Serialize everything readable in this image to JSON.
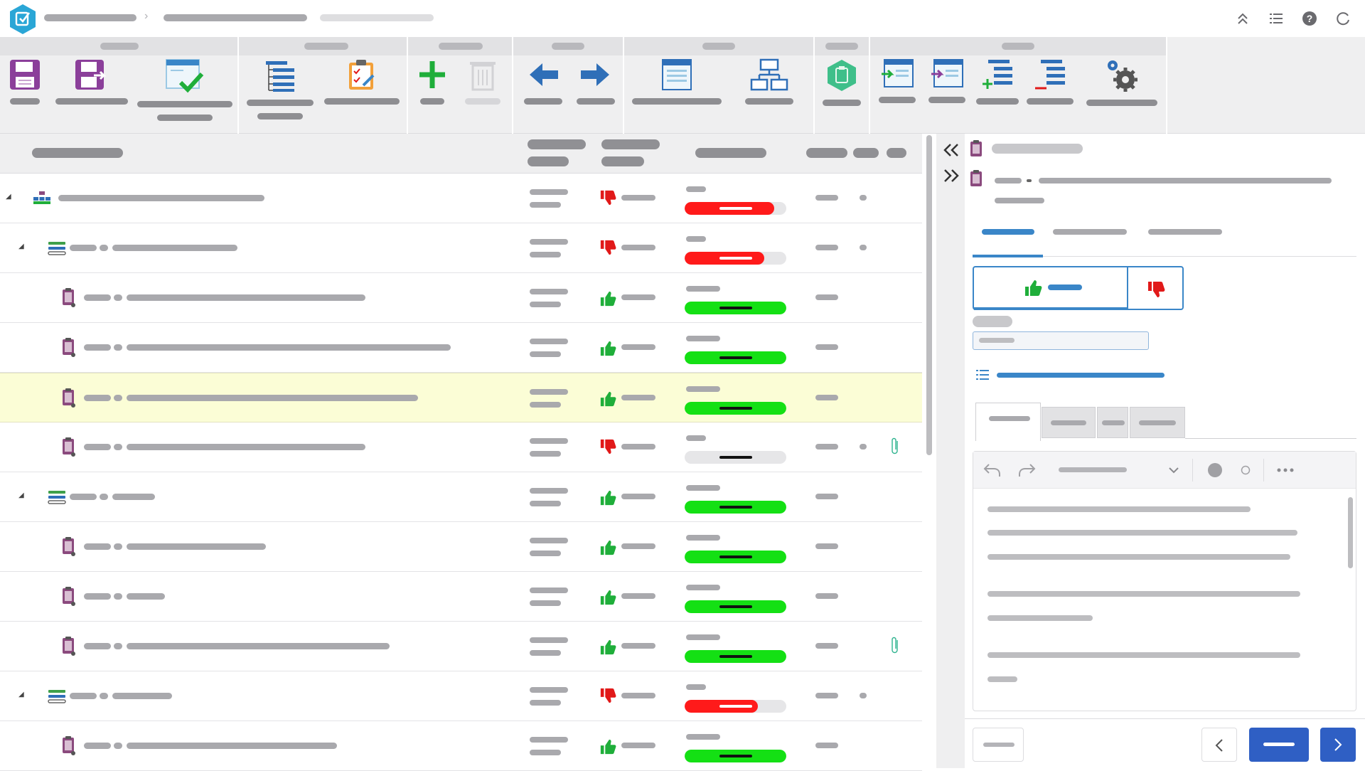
{
  "app": {
    "logo": "checklist-logo-icon",
    "breadcrumb": [
      "",
      "",
      ""
    ]
  },
  "topbar_icons": [
    "collapse-up-icon",
    "list-icon",
    "help-icon",
    "refresh-icon"
  ],
  "ribbon": {
    "groups": [
      "",
      "",
      "",
      "",
      "",
      "",
      "",
      ""
    ],
    "buttons": [
      {
        "icon": "save-icon",
        "label": ""
      },
      {
        "icon": "save-as-icon",
        "label": ""
      },
      {
        "icon": "validate-window-icon",
        "label": ""
      },
      {
        "icon": "list-tree-icon",
        "label": ""
      },
      {
        "icon": "clipboard-check-icon",
        "label": ""
      },
      {
        "icon": "add-icon",
        "label": ""
      },
      {
        "icon": "delete-icon",
        "label": ""
      },
      {
        "icon": "arrow-left-icon",
        "label": ""
      },
      {
        "icon": "arrow-right-icon",
        "label": ""
      },
      {
        "icon": "document-icon",
        "label": ""
      },
      {
        "icon": "hierarchy-icon",
        "label": ""
      },
      {
        "icon": "hexagon-clipboard-icon",
        "label": ""
      },
      {
        "icon": "import-icon",
        "label": ""
      },
      {
        "icon": "export-icon",
        "label": ""
      },
      {
        "icon": "add-list-icon",
        "label": ""
      },
      {
        "icon": "remove-list-icon",
        "label": ""
      },
      {
        "icon": "settings-gears-icon",
        "label": ""
      }
    ]
  },
  "colors": {
    "pass": "#14e014",
    "fail": "#ff1a1a",
    "accent": "#2f5fc4",
    "thumb_up": "#1fae3a",
    "thumb_down": "#e11919",
    "selected_row": "#fbfdd6"
  },
  "table": {
    "rows": [
      {
        "level": 0,
        "expandable": true,
        "icon": "org-structure-icon",
        "vote": "down",
        "status": "fail",
        "progress": 0.88,
        "extra_dot": true,
        "attachment": false,
        "selected": false
      },
      {
        "level": 1,
        "expandable": true,
        "icon": "stack-icon",
        "vote": "down",
        "status": "fail",
        "progress": 0.78,
        "extra_dot": true,
        "attachment": false,
        "selected": false
      },
      {
        "level": 2,
        "expandable": false,
        "icon": "clipboard-icon",
        "vote": "up",
        "status": "pass",
        "progress": 1.0,
        "extra_dot": false,
        "attachment": false,
        "selected": false
      },
      {
        "level": 2,
        "expandable": false,
        "icon": "clipboard-icon",
        "vote": "up",
        "status": "pass",
        "progress": 1.0,
        "extra_dot": false,
        "attachment": false,
        "selected": false
      },
      {
        "level": 2,
        "expandable": false,
        "icon": "clipboard-icon",
        "vote": "up",
        "status": "pass",
        "progress": 1.0,
        "extra_dot": false,
        "attachment": false,
        "selected": true
      },
      {
        "level": 2,
        "expandable": false,
        "icon": "clipboard-icon",
        "vote": "down",
        "status": "none",
        "progress": 0.0,
        "extra_dot": true,
        "attachment": true,
        "selected": false
      },
      {
        "level": 1,
        "expandable": true,
        "icon": "stack-icon",
        "vote": "up",
        "status": "pass",
        "progress": 1.0,
        "extra_dot": false,
        "attachment": false,
        "selected": false
      },
      {
        "level": 2,
        "expandable": false,
        "icon": "clipboard-icon",
        "vote": "up",
        "status": "pass",
        "progress": 1.0,
        "extra_dot": false,
        "attachment": false,
        "selected": false
      },
      {
        "level": 2,
        "expandable": false,
        "icon": "clipboard-icon",
        "vote": "up",
        "status": "pass",
        "progress": 1.0,
        "extra_dot": false,
        "attachment": false,
        "selected": false
      },
      {
        "level": 2,
        "expandable": false,
        "icon": "clipboard-icon",
        "vote": "up",
        "status": "pass",
        "progress": 1.0,
        "extra_dot": false,
        "attachment": true,
        "selected": false
      },
      {
        "level": 1,
        "expandable": true,
        "icon": "stack-icon",
        "vote": "down",
        "status": "fail",
        "progress": 0.72,
        "extra_dot": true,
        "attachment": false,
        "selected": false
      },
      {
        "level": 2,
        "expandable": false,
        "icon": "clipboard-icon",
        "vote": "up",
        "status": "pass",
        "progress": 1.0,
        "extra_dot": false,
        "attachment": false,
        "selected": false
      }
    ]
  },
  "panel": {
    "collapse_icons": [
      "double-chevron-left-icon",
      "double-chevron-right-icon"
    ],
    "vote": {
      "up_icon": "thumb-up-icon",
      "down_icon": "thumb-down-icon"
    },
    "editor_toolbar": [
      "undo-icon",
      "redo-icon",
      "chevron-down-icon",
      "filled-circle-icon",
      "outline-circle-icon",
      "more-icon"
    ],
    "footer": {
      "prev_icon": "chevron-left-icon",
      "next_icon": "chevron-right-icon"
    }
  }
}
